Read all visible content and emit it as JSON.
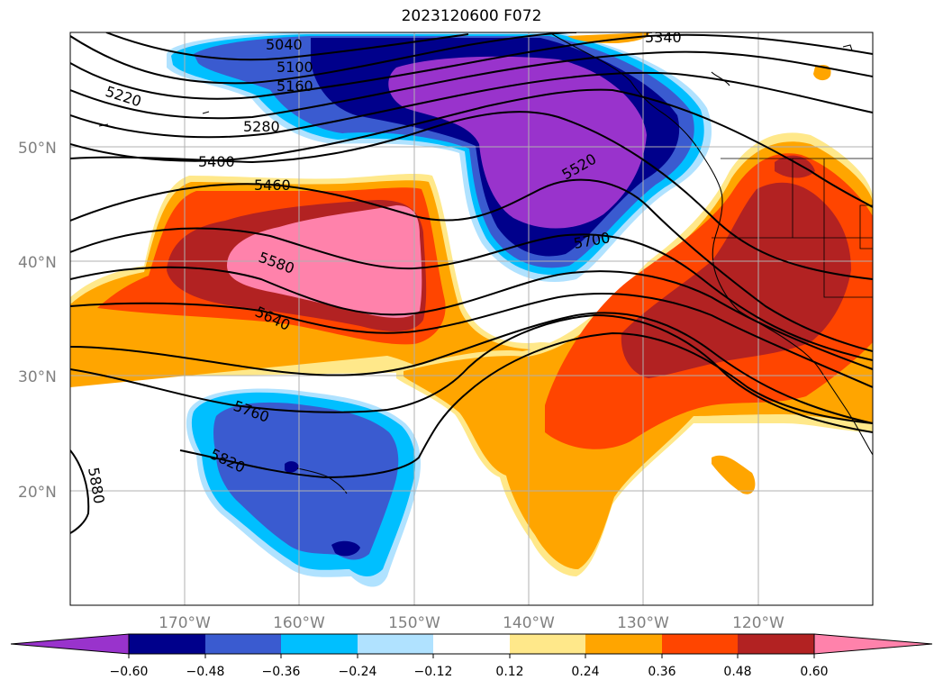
{
  "title": "2023120600 F072",
  "map": {
    "lat_labels": [
      "50°N",
      "40°N",
      "30°N",
      "20°N"
    ],
    "lon_labels": [
      "170°W",
      "160°W",
      "150°W",
      "140°W",
      "130°W",
      "120°W"
    ],
    "contour_labels": [
      "5040",
      "5100",
      "5160",
      "5220",
      "5280",
      "5340",
      "5400",
      "5460",
      "5520",
      "5580",
      "5640",
      "5700",
      "5760",
      "5820",
      "5880"
    ],
    "gridlines": true
  },
  "colorbar": {
    "ticks": [
      "−0.60",
      "−0.48",
      "−0.36",
      "−0.24",
      "−0.12",
      "0.12",
      "0.24",
      "0.36",
      "0.48",
      "0.60"
    ],
    "colors": [
      "#9933cc",
      "#00008b",
      "#3a5bd0",
      "#00bfff",
      "#b0e2ff",
      "#ffffff",
      "#ffe88a",
      "#ffa500",
      "#ff4500",
      "#b22222",
      "#ff82ab"
    ],
    "extend": "both"
  }
}
